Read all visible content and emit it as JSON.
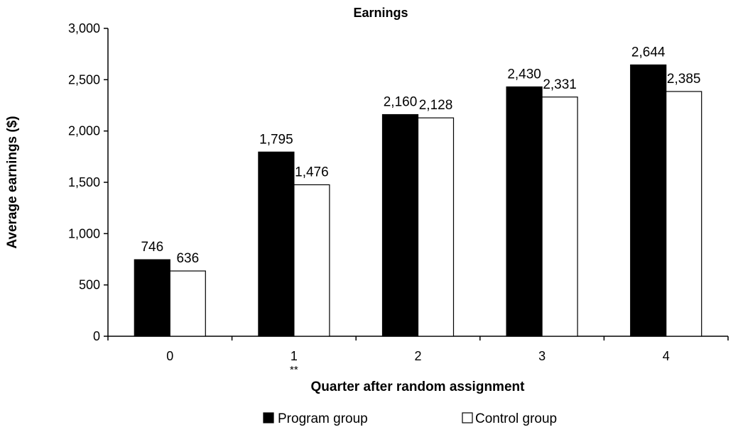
{
  "chart_data": {
    "type": "bar",
    "title": "Earnings",
    "xlabel": "Quarter after random assignment",
    "ylabel": "Average earnings ($)",
    "categories": [
      "0",
      "1",
      "2",
      "3",
      "4"
    ],
    "ylim": [
      0,
      3000
    ],
    "yticks": [
      0,
      500,
      1000,
      1500,
      2000,
      2500,
      3000
    ],
    "ytick_labels": [
      "0",
      "500",
      "1,000",
      "1,500",
      "2,000",
      "2,500",
      "3,000"
    ],
    "series": [
      {
        "name": "Program group",
        "values": [
          746,
          1795,
          2160,
          2430,
          2644
        ],
        "labels": [
          "746",
          "1,795",
          "2,160",
          "2,430",
          "2,644"
        ],
        "color": "#000000"
      },
      {
        "name": "Control group",
        "values": [
          636,
          1476,
          2128,
          2331,
          2385
        ],
        "labels": [
          "636",
          "1,476",
          "2,128",
          "2,331",
          "2,385"
        ],
        "color": "#ffffff"
      }
    ],
    "significance": [
      {
        "category": "1",
        "marker": "**"
      }
    ],
    "grid": false,
    "legend_position": "bottom"
  }
}
